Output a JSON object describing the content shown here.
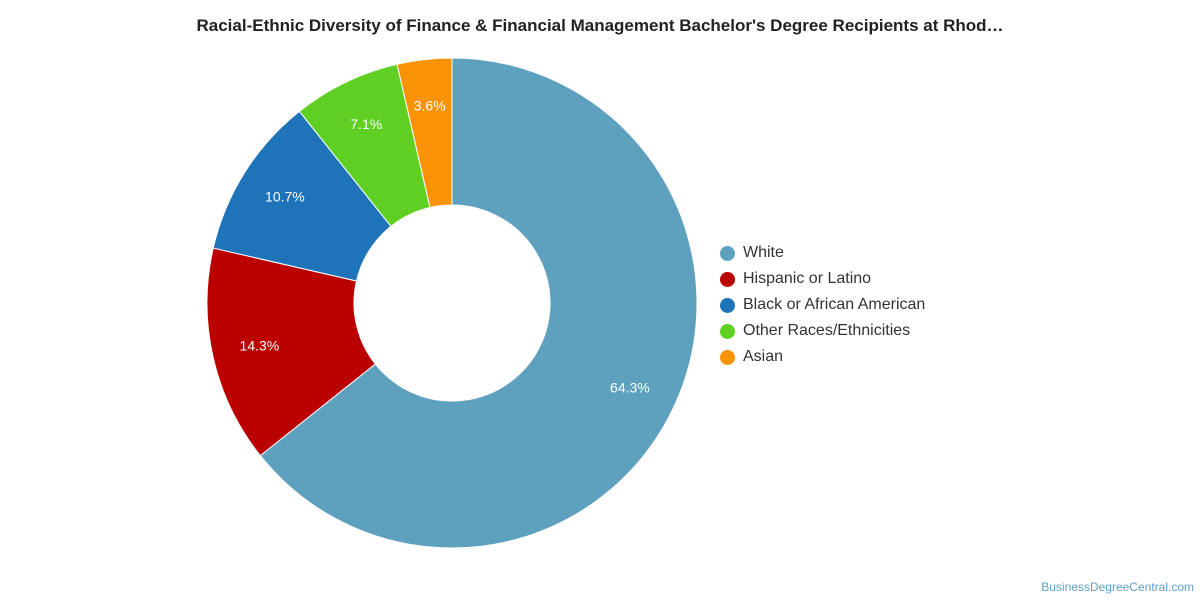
{
  "chart_data": {
    "type": "pie",
    "donut": true,
    "title": "Racial-Ethnic Diversity of Finance & Financial Management Bachelor's Degree Recipients at Rhod…",
    "categories": [
      "White",
      "Hispanic or Latino",
      "Black or African American",
      "Other Races/Ethnicities",
      "Asian"
    ],
    "values": [
      64.3,
      14.3,
      10.7,
      7.1,
      3.6
    ],
    "labels": [
      "64.3%",
      "14.3%",
      "10.7%",
      "7.1%",
      "3.6%"
    ],
    "colors": [
      "#5ea1bf",
      "#bb0000",
      "#1f74b9",
      "#60cf24",
      "#f99306"
    ],
    "legend_position": "right"
  },
  "footer": {
    "source": "BusinessDegreeCentral.com"
  }
}
